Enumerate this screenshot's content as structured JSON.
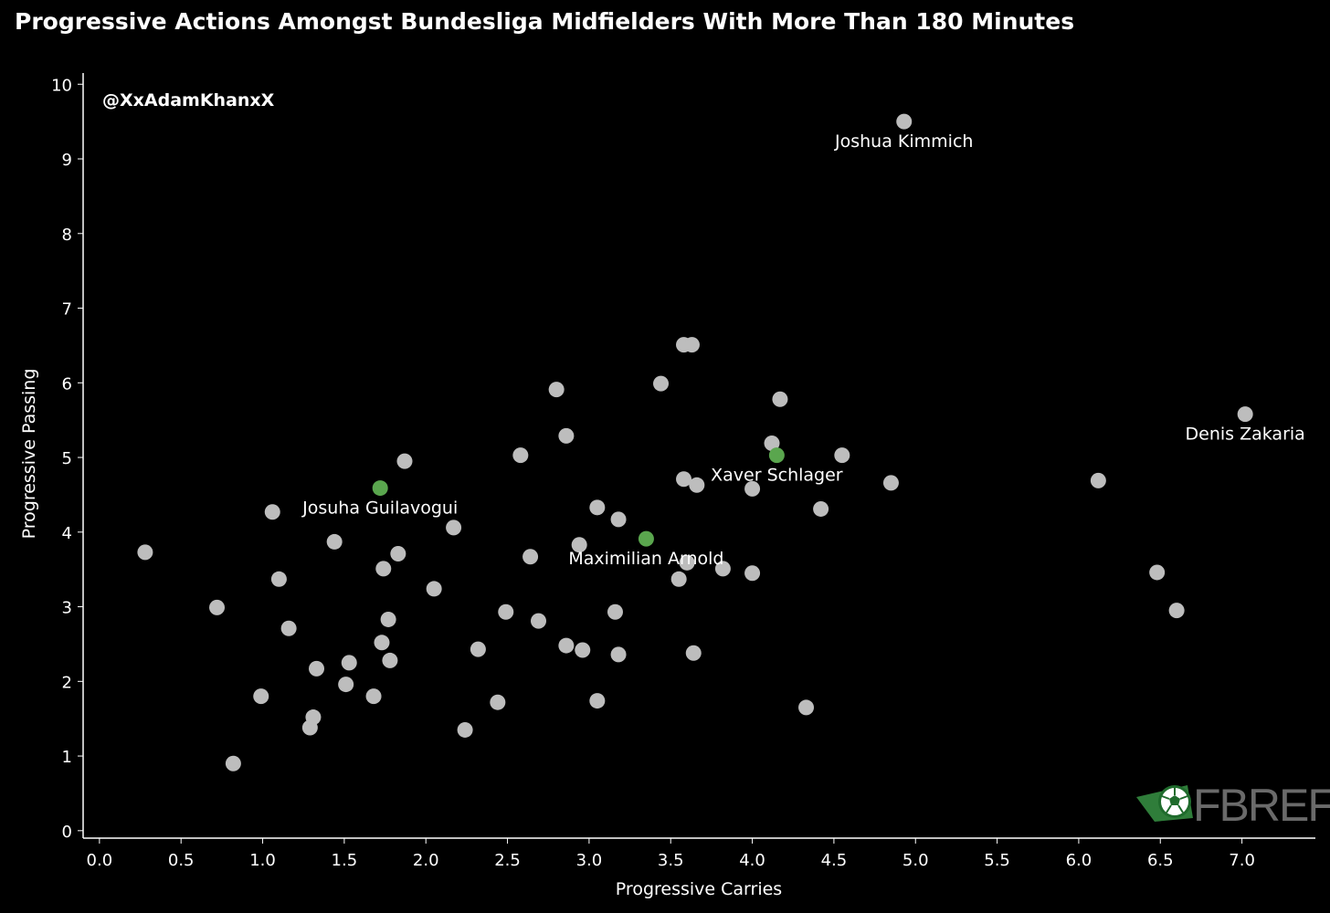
{
  "chart_data": {
    "type": "scatter",
    "title": "Progressive Actions Amongst Bundesliga Midfielders With More Than 180 Minutes",
    "xlabel": "Progressive Carries",
    "ylabel": "Progressive Passing",
    "xlim": [
      -0.1,
      7.45
    ],
    "ylim": [
      -0.1,
      10.15
    ],
    "xticks": [
      "0.0",
      "0.5",
      "1.0",
      "1.5",
      "2.0",
      "2.5",
      "3.0",
      "3.5",
      "4.0",
      "4.5",
      "5.0",
      "5.5",
      "6.0",
      "6.5",
      "7.0"
    ],
    "yticks": [
      "0",
      "1",
      "2",
      "3",
      "4",
      "5",
      "6",
      "7",
      "8",
      "9",
      "10"
    ],
    "grid": false,
    "watermark": "@XxAdamKhanxX",
    "colors": {
      "default": "#bdbdbd",
      "highlight": "#5aa64e",
      "background": "#000000"
    },
    "points": [
      {
        "x": 0.28,
        "y": 3.73
      },
      {
        "x": 0.72,
        "y": 2.99
      },
      {
        "x": 0.82,
        "y": 0.9
      },
      {
        "x": 0.99,
        "y": 1.8
      },
      {
        "x": 1.06,
        "y": 4.27
      },
      {
        "x": 1.1,
        "y": 3.37
      },
      {
        "x": 1.16,
        "y": 2.71
      },
      {
        "x": 1.29,
        "y": 1.38
      },
      {
        "x": 1.31,
        "y": 1.52
      },
      {
        "x": 1.33,
        "y": 2.17
      },
      {
        "x": 1.44,
        "y": 3.87
      },
      {
        "x": 1.51,
        "y": 1.96
      },
      {
        "x": 1.53,
        "y": 2.25
      },
      {
        "x": 1.68,
        "y": 1.8
      },
      {
        "x": 1.73,
        "y": 2.52
      },
      {
        "x": 1.74,
        "y": 3.51
      },
      {
        "x": 1.77,
        "y": 2.83
      },
      {
        "x": 1.78,
        "y": 2.28
      },
      {
        "x": 1.83,
        "y": 3.71
      },
      {
        "x": 1.87,
        "y": 4.95
      },
      {
        "x": 2.05,
        "y": 3.24
      },
      {
        "x": 2.17,
        "y": 4.06
      },
      {
        "x": 2.24,
        "y": 1.35
      },
      {
        "x": 2.32,
        "y": 2.43
      },
      {
        "x": 2.44,
        "y": 1.72
      },
      {
        "x": 2.49,
        "y": 2.93
      },
      {
        "x": 2.58,
        "y": 5.03
      },
      {
        "x": 2.64,
        "y": 3.67
      },
      {
        "x": 2.69,
        "y": 2.81
      },
      {
        "x": 2.8,
        "y": 5.91
      },
      {
        "x": 2.86,
        "y": 5.29
      },
      {
        "x": 2.86,
        "y": 2.48
      },
      {
        "x": 2.96,
        "y": 2.42
      },
      {
        "x": 2.94,
        "y": 3.83
      },
      {
        "x": 3.05,
        "y": 4.33
      },
      {
        "x": 3.05,
        "y": 1.74
      },
      {
        "x": 3.16,
        "y": 2.93
      },
      {
        "x": 3.18,
        "y": 4.17
      },
      {
        "x": 3.18,
        "y": 2.36
      },
      {
        "x": 3.44,
        "y": 5.99
      },
      {
        "x": 3.58,
        "y": 6.51
      },
      {
        "x": 3.63,
        "y": 6.51
      },
      {
        "x": 3.58,
        "y": 4.71
      },
      {
        "x": 3.66,
        "y": 4.63
      },
      {
        "x": 3.6,
        "y": 3.59
      },
      {
        "x": 3.55,
        "y": 3.37
      },
      {
        "x": 3.64,
        "y": 2.38
      },
      {
        "x": 3.82,
        "y": 3.51
      },
      {
        "x": 4.0,
        "y": 4.58
      },
      {
        "x": 4.0,
        "y": 3.45
      },
      {
        "x": 4.12,
        "y": 5.19
      },
      {
        "x": 4.17,
        "y": 5.78
      },
      {
        "x": 4.33,
        "y": 1.65
      },
      {
        "x": 4.42,
        "y": 4.31
      },
      {
        "x": 4.55,
        "y": 5.03
      },
      {
        "x": 4.85,
        "y": 4.66
      },
      {
        "x": 6.12,
        "y": 4.69
      },
      {
        "x": 6.48,
        "y": 3.46
      },
      {
        "x": 6.6,
        "y": 2.95
      },
      {
        "x": 4.93,
        "y": 9.5,
        "label": "Joshua Kimmich"
      },
      {
        "x": 7.02,
        "y": 5.58,
        "label": "Denis Zakaria"
      },
      {
        "x": 1.72,
        "y": 4.59,
        "label": "Josuha Guilavogui",
        "highlight": true
      },
      {
        "x": 3.35,
        "y": 3.91,
        "label": "Maximilian Arnold",
        "highlight": true
      },
      {
        "x": 4.15,
        "y": 5.03,
        "label": "Xaver Schlager",
        "highlight": true
      }
    ]
  },
  "logo": {
    "text": "FBREF",
    "icon": "fbref-ball-icon"
  }
}
